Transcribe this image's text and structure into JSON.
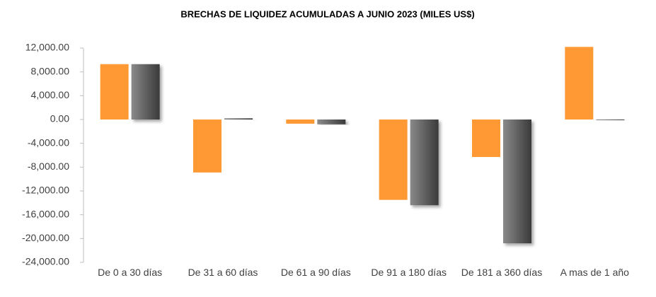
{
  "chart_data": {
    "type": "bar",
    "title": "BRECHAS DE LIQUIDEZ ACUMULADAS A JUNIO 2023 (MILES US$)",
    "categories": [
      "De 0 a 30 días",
      "De 31 a 60 días",
      "De 61 a 90 días",
      "De 91 a 180 días",
      "De 181 a 360 días",
      "A mas de 1 año"
    ],
    "series": [
      {
        "color": "#ff9933",
        "values": [
          9300,
          -8900,
          -700,
          -13500,
          -6300,
          12200
        ]
      },
      {
        "color": "#666666",
        "values": [
          9300,
          200,
          -800,
          -14400,
          -20800,
          -100
        ]
      }
    ],
    "ylim": [
      -24000,
      12000
    ],
    "yticks": [
      {
        "value": -24000,
        "label": "-24,000.00"
      },
      {
        "value": -20000,
        "label": "-20,000.00"
      },
      {
        "value": -16000,
        "label": "-16,000.00"
      },
      {
        "value": -12000,
        "label": "-12,000.00"
      },
      {
        "value": -8000,
        "label": "-8,000.00"
      },
      {
        "value": -4000,
        "label": "-4,000.00"
      },
      {
        "value": 0,
        "label": "0.00"
      },
      {
        "value": 4000,
        "label": "4,000.00"
      },
      {
        "value": 8000,
        "label": "8,000.00"
      },
      {
        "value": 12000,
        "label": "12,000.00"
      }
    ],
    "grid": false
  }
}
